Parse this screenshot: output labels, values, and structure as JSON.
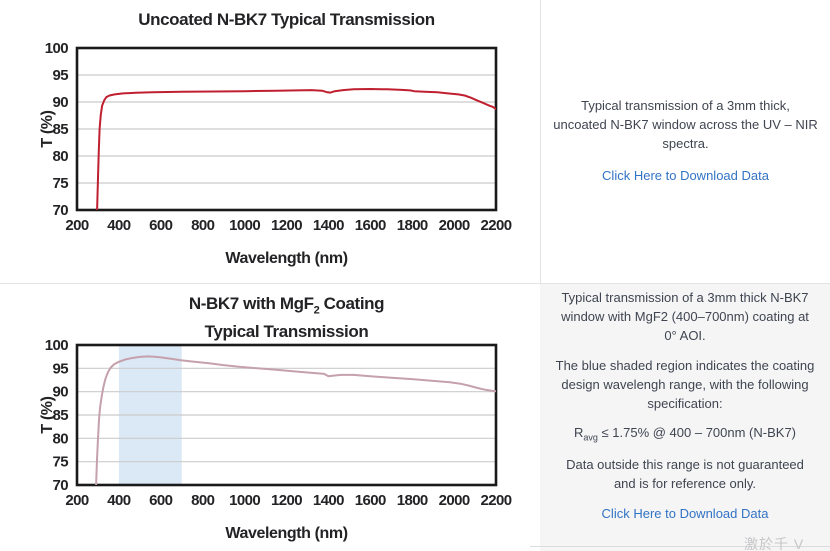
{
  "info_uncoated": {
    "description": "Typical transmission of a 3mm thick, uncoated N-BK7 window across the UV – NIR spectra.",
    "download_link": "Click Here to Download Data"
  },
  "info_coated": {
    "p1": "Typical transmission of a 3mm thick N-BK7 window with MgF2 (400–700nm) coating at 0° AOI.",
    "p2": "The blue shaded region indicates the coating design wavelengh range, with the following specification:",
    "spec": {
      "prefix": "R",
      "sub": "avg",
      "rest": " ≤ 1.75% @ 400 – 700nm (N-BK7)"
    },
    "p3": "Data outside this range is not guaranteed and is for reference only.",
    "download_link": "Click Here to Download Data"
  },
  "watermark": "激於千 V",
  "colors": {
    "uncoated_curve": "#c01f2f",
    "coated_curve": "#c5a1ab",
    "shaded_region": "#dbe9f6",
    "link": "#3273c4",
    "body_text": "#3f4550",
    "panel_bg": "#f5f5f6",
    "grid": "#cbcbcb",
    "frame": "#1a1a1a"
  },
  "chart_data": [
    {
      "type": "line",
      "title": "Uncoated N-BK7 Typical Transmission",
      "xlabel": "Wavelength (nm)",
      "ylabel": "T (%)",
      "xlim": [
        200,
        2200
      ],
      "ylim": [
        70,
        100
      ],
      "x_ticks": [
        200,
        400,
        600,
        800,
        1000,
        1200,
        1400,
        1600,
        1800,
        2000,
        2200
      ],
      "y_ticks": [
        70,
        75,
        80,
        85,
        90,
        95,
        100
      ],
      "grid": "horizontal",
      "grid_color": "#cbcbcb",
      "frame_color": "#1a1a1a",
      "legend": "none",
      "series": [
        {
          "name": "Uncoated N-BK7 transmission",
          "color": "#c01f2f",
          "points": [
            [
              293,
              66
            ],
            [
              296,
              70
            ],
            [
              300,
              76
            ],
            [
              304,
              81
            ],
            [
              308,
              85
            ],
            [
              313,
              87.5
            ],
            [
              320,
              89.3
            ],
            [
              330,
              90.3
            ],
            [
              340,
              90.9
            ],
            [
              355,
              91.2
            ],
            [
              380,
              91.4
            ],
            [
              420,
              91.6
            ],
            [
              480,
              91.7
            ],
            [
              560,
              91.8
            ],
            [
              700,
              91.9
            ],
            [
              850,
              91.95
            ],
            [
              1000,
              92.0
            ],
            [
              1150,
              92.1
            ],
            [
              1250,
              92.15
            ],
            [
              1320,
              92.2
            ],
            [
              1370,
              92.1
            ],
            [
              1395,
              91.8
            ],
            [
              1410,
              91.75
            ],
            [
              1430,
              92.0
            ],
            [
              1470,
              92.2
            ],
            [
              1520,
              92.35
            ],
            [
              1600,
              92.4
            ],
            [
              1680,
              92.35
            ],
            [
              1750,
              92.25
            ],
            [
              1790,
              92.15
            ],
            [
              1810,
              92.0
            ],
            [
              1860,
              91.9
            ],
            [
              1920,
              91.8
            ],
            [
              1970,
              91.6
            ],
            [
              2020,
              91.4
            ],
            [
              2050,
              91.2
            ],
            [
              2080,
              90.8
            ],
            [
              2110,
              90.3
            ],
            [
              2140,
              89.8
            ],
            [
              2170,
              89.3
            ],
            [
              2185,
              89.1
            ],
            [
              2200,
              88.7
            ]
          ]
        }
      ]
    },
    {
      "type": "line",
      "title": "N-BK7 with MgF2 Coating Typical Transmission",
      "title_parts": [
        "N-BK7 with MgF",
        "2",
        " Coating"
      ],
      "title_line2": "Typical Transmission",
      "xlabel": "Wavelength (nm)",
      "ylabel": "T (%)",
      "xlim": [
        200,
        2200
      ],
      "ylim": [
        70,
        100
      ],
      "x_ticks": [
        200,
        400,
        600,
        800,
        1000,
        1200,
        1400,
        1600,
        1800,
        2000,
        2200
      ],
      "y_ticks": [
        70,
        75,
        80,
        85,
        90,
        95,
        100
      ],
      "grid": "horizontal",
      "grid_color": "#cbcbcb",
      "frame_color": "#1a1a1a",
      "legend": "none",
      "shaded_region": {
        "x_start": 400,
        "x_end": 700,
        "color": "#dbe9f6",
        "meaning": "coating design wavelength range"
      },
      "series": [
        {
          "name": "N-BK7 with MgF2 coating transmission",
          "color": "#c5a1ab",
          "points": [
            [
              288,
              66
            ],
            [
              291,
              70
            ],
            [
              295,
              75
            ],
            [
              300,
              80
            ],
            [
              305,
              84
            ],
            [
              310,
              86.5
            ],
            [
              318,
              89
            ],
            [
              326,
              91
            ],
            [
              336,
              92.8
            ],
            [
              348,
              94.2
            ],
            [
              362,
              95.2
            ],
            [
              378,
              95.9
            ],
            [
              400,
              96.4
            ],
            [
              430,
              96.9
            ],
            [
              460,
              97.2
            ],
            [
              500,
              97.45
            ],
            [
              540,
              97.55
            ],
            [
              570,
              97.5
            ],
            [
              600,
              97.35
            ],
            [
              640,
              97.1
            ],
            [
              700,
              96.7
            ],
            [
              760,
              96.4
            ],
            [
              830,
              96.1
            ],
            [
              900,
              95.7
            ],
            [
              980,
              95.3
            ],
            [
              1060,
              95.0
            ],
            [
              1150,
              94.7
            ],
            [
              1250,
              94.3
            ],
            [
              1330,
              94.0
            ],
            [
              1380,
              93.8
            ],
            [
              1400,
              93.3
            ],
            [
              1420,
              93.4
            ],
            [
              1460,
              93.6
            ],
            [
              1520,
              93.6
            ],
            [
              1600,
              93.3
            ],
            [
              1700,
              93.0
            ],
            [
              1800,
              92.7
            ],
            [
              1900,
              92.3
            ],
            [
              1980,
              92.0
            ],
            [
              2030,
              91.7
            ],
            [
              2070,
              91.3
            ],
            [
              2110,
              90.8
            ],
            [
              2150,
              90.4
            ],
            [
              2180,
              90.2
            ],
            [
              2200,
              90.1
            ]
          ]
        }
      ]
    }
  ]
}
